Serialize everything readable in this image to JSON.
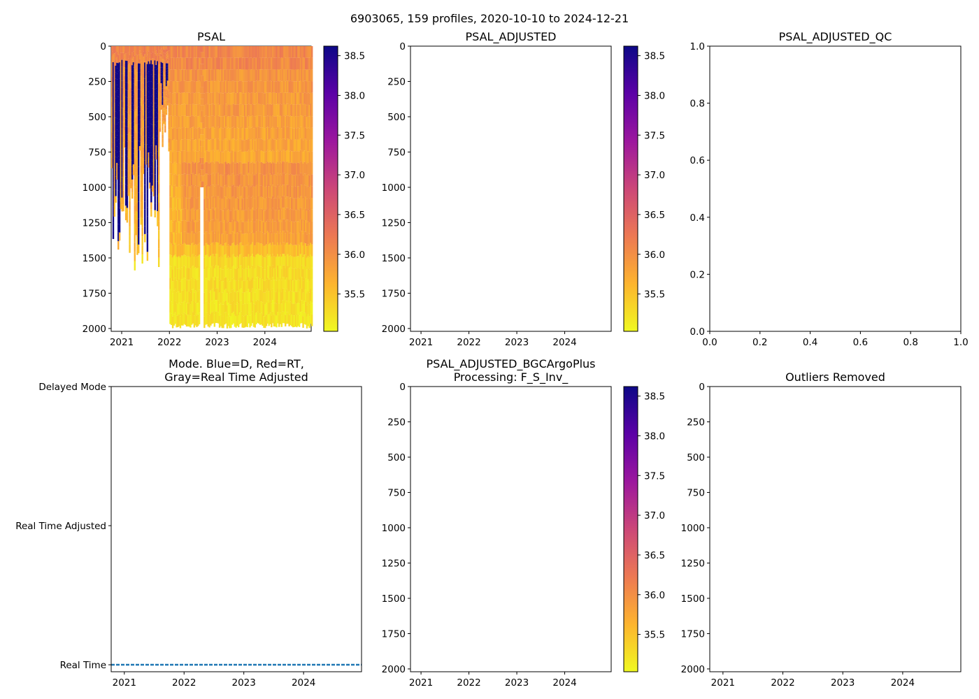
{
  "figure": {
    "suptitle": "6903065, 159 profiles, 2020-10-10 to 2024-12-21"
  },
  "colors": {
    "colormap": [
      "#f0f921",
      "#fdb42f",
      "#ed7953",
      "#cc4778",
      "#9c179e",
      "#5c01a6",
      "#0d0887"
    ],
    "real_time_line": "#1f77b4",
    "background": "#ffffff"
  },
  "chart_data": [
    {
      "id": "psal",
      "type": "heatmap",
      "title": "PSAL",
      "x_ticks": [
        "2021",
        "2022",
        "2023",
        "2024"
      ],
      "x_tick_values": [
        2021.0,
        2022.0,
        2023.0,
        2024.0
      ],
      "xlim": [
        2020.78,
        2024.97
      ],
      "y_ticks": [
        "0",
        "250",
        "500",
        "750",
        "1000",
        "1250",
        "1500",
        "1750",
        "2000"
      ],
      "y_tick_values": [
        0,
        250,
        500,
        750,
        1000,
        1250,
        1500,
        1750,
        2000
      ],
      "ylim": [
        2020,
        0
      ],
      "ylabel": "",
      "colorbar": {
        "ticks": [
          "35.5",
          "36.0",
          "36.5",
          "37.0",
          "37.5",
          "38.0",
          "38.5"
        ],
        "tick_values": [
          35.5,
          36.0,
          36.5,
          37.0,
          37.5,
          38.0,
          38.5
        ],
        "range": [
          35.03,
          38.62
        ]
      },
      "notes": "salinity ~38.6 in first profiles down to ~800-1560 dbar; 35.1-36.5 elsewhere; profiles reach ~2000 dbar from 2022",
      "has_data": true
    },
    {
      "id": "psal_adjusted",
      "type": "heatmap",
      "title": "PSAL_ADJUSTED",
      "x_ticks": [
        "2021",
        "2022",
        "2023",
        "2024"
      ],
      "x_tick_values": [
        2021.0,
        2022.0,
        2023.0,
        2024.0
      ],
      "xlim": [
        2020.78,
        2024.97
      ],
      "y_ticks": [
        "0",
        "250",
        "500",
        "750",
        "1000",
        "1250",
        "1500",
        "1750",
        "2000"
      ],
      "y_tick_values": [
        0,
        250,
        500,
        750,
        1000,
        1250,
        1500,
        1750,
        2000
      ],
      "ylim": [
        2020,
        0
      ],
      "colorbar": {
        "ticks": [
          "35.5",
          "36.0",
          "36.5",
          "37.0",
          "37.5",
          "38.0",
          "38.5"
        ],
        "tick_values": [
          35.5,
          36.0,
          36.5,
          37.0,
          37.5,
          38.0,
          38.5
        ],
        "range": [
          35.03,
          38.62
        ]
      },
      "has_data": false
    },
    {
      "id": "psal_adjusted_qc",
      "type": "scatter",
      "title": "PSAL_ADJUSTED_QC",
      "x_ticks": [
        "0.0",
        "0.2",
        "0.4",
        "0.6",
        "0.8",
        "1.0"
      ],
      "x_tick_values": [
        0.0,
        0.2,
        0.4,
        0.6,
        0.8,
        1.0
      ],
      "xlim": [
        0,
        1
      ],
      "y_ticks": [
        "0.0",
        "0.2",
        "0.4",
        "0.6",
        "0.8",
        "1.0"
      ],
      "y_tick_values": [
        0.0,
        0.2,
        0.4,
        0.6,
        0.8,
        1.0
      ],
      "ylim": [
        0,
        1
      ],
      "has_data": false
    },
    {
      "id": "mode",
      "type": "line",
      "title": "Mode. Blue=D, Red=RT,\nGray=Real Time Adjusted",
      "title_lines": [
        "Mode. Blue=D, Red=RT,",
        "Gray=Real Time Adjusted"
      ],
      "x_ticks": [
        "2021",
        "2022",
        "2023",
        "2024"
      ],
      "x_tick_values": [
        2021.0,
        2022.0,
        2023.0,
        2024.0
      ],
      "xlim": [
        2020.78,
        2024.97
      ],
      "y_ticks": [
        "Delayed Mode",
        "Real Time Adjusted",
        "Real Time"
      ],
      "y_tick_values": [
        2,
        1,
        0
      ],
      "ylim": [
        -0.05,
        2.0
      ],
      "series": [
        {
          "name": "Real Time",
          "x": [
            2020.78,
            2021.5,
            2022.2,
            2023.0,
            2023.8,
            2024.97
          ],
          "y": [
            0,
            0,
            0,
            0,
            0,
            0
          ]
        }
      ],
      "has_data": true
    },
    {
      "id": "psal_bgcargoplus",
      "type": "heatmap",
      "title": "PSAL_ADJUSTED_BGCArgoPlus\nProcessing: F_S_Inv_",
      "title_lines": [
        "PSAL_ADJUSTED_BGCArgoPlus",
        "Processing: F_S_Inv_"
      ],
      "x_ticks": [
        "2021",
        "2022",
        "2023",
        "2024"
      ],
      "x_tick_values": [
        2021.0,
        2022.0,
        2023.0,
        2024.0
      ],
      "xlim": [
        2020.78,
        2024.97
      ],
      "y_ticks": [
        "0",
        "250",
        "500",
        "750",
        "1000",
        "1250",
        "1500",
        "1750",
        "2000"
      ],
      "y_tick_values": [
        0,
        250,
        500,
        750,
        1000,
        1250,
        1500,
        1750,
        2000
      ],
      "ylim": [
        2020,
        0
      ],
      "colorbar": {
        "ticks": [
          "35.5",
          "36.0",
          "36.5",
          "37.0",
          "37.5",
          "38.0",
          "38.5"
        ],
        "tick_values": [
          35.5,
          36.0,
          36.5,
          37.0,
          37.5,
          38.0,
          38.5
        ],
        "range": [
          35.03,
          38.62
        ]
      },
      "has_data": false
    },
    {
      "id": "outliers",
      "type": "scatter",
      "title": "Outliers Removed",
      "x_ticks": [
        "2021",
        "2022",
        "2023",
        "2024"
      ],
      "x_tick_values": [
        2021.0,
        2022.0,
        2023.0,
        2024.0
      ],
      "xlim": [
        2020.78,
        2024.97
      ],
      "y_ticks": [
        "0",
        "250",
        "500",
        "750",
        "1000",
        "1250",
        "1500",
        "1750",
        "2000"
      ],
      "y_tick_values": [
        0,
        250,
        500,
        750,
        1000,
        1250,
        1500,
        1750,
        2000
      ],
      "ylim": [
        2020,
        0
      ],
      "has_data": false
    }
  ]
}
